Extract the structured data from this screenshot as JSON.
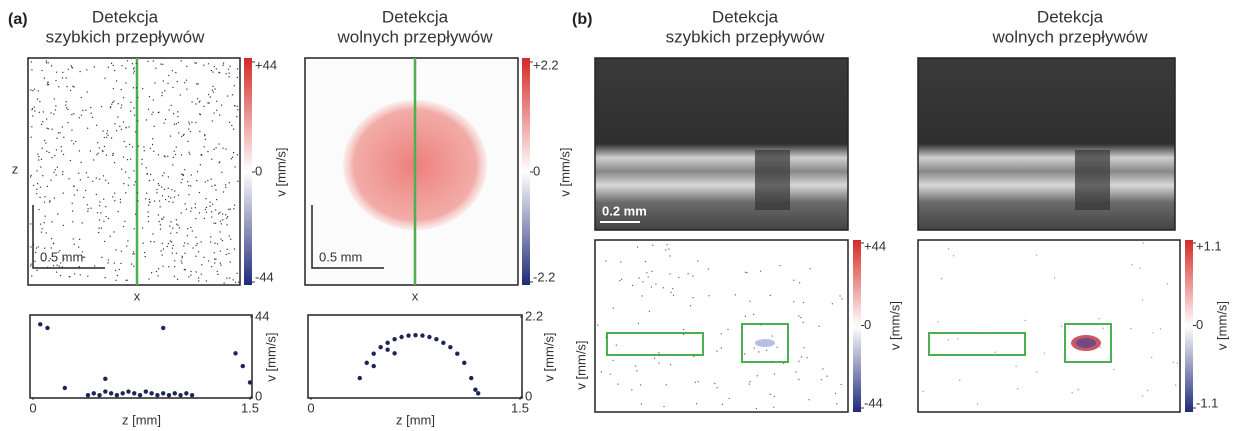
{
  "panel_a": {
    "label": "(a)",
    "fast": {
      "title": [
        "Detekcja",
        "szybkich przepływów"
      ],
      "z_label": "z",
      "x_label": "x",
      "scale_bar": "0.5 mm",
      "colorbar": {
        "label": "v [mm/s]",
        "ylim": [
          -44,
          44
        ],
        "ticks": [
          {
            "value": 44,
            "label": "+44"
          },
          0,
          -44
        ]
      },
      "profile": {
        "type": "scatter",
        "xlabel": "z [mm]",
        "ylabel": "v [mm/s]",
        "xlim": [
          0,
          1.5
        ],
        "ylim": [
          0,
          44
        ],
        "xticks": [
          0,
          1.5
        ],
        "yticks": [
          0,
          44
        ],
        "color": "#1c2458",
        "x": [
          0.05,
          0.1,
          0.22,
          0.5,
          0.9,
          1.4,
          1.45,
          1.5,
          0.38,
          0.42,
          0.46,
          0.5,
          0.54,
          0.58,
          0.62,
          0.66,
          0.7,
          0.74,
          0.78,
          0.82,
          0.86,
          0.9,
          0.94,
          0.98,
          1.02,
          1.06,
          1.1
        ],
        "y": [
          40,
          38,
          5,
          10,
          38,
          24,
          17,
          8,
          1,
          2,
          1,
          3,
          2,
          1,
          2,
          3,
          2,
          1,
          3,
          2,
          1,
          2,
          1,
          2,
          1,
          2,
          1
        ]
      }
    },
    "slow": {
      "title": [
        "Detekcja",
        "wolnych przepływów"
      ],
      "x_label": "x",
      "scale_bar": "0.5 mm",
      "colorbar": {
        "label": "v [mm/s]",
        "ylim": [
          -2.2,
          2.2
        ],
        "ticks": [
          {
            "value": 2.2,
            "label": "+2.2"
          },
          0,
          -2.2
        ]
      },
      "profile": {
        "type": "scatter",
        "xlabel": "z [mm]",
        "ylabel": "v [mm/s]",
        "xlim": [
          0,
          1.5
        ],
        "ylim": [
          0,
          2.2
        ],
        "xticks": [
          0,
          1.5
        ],
        "yticks": [
          0,
          2.2
        ],
        "color": "#1c2458",
        "x": [
          0.35,
          0.4,
          0.45,
          0.5,
          0.55,
          0.6,
          0.65,
          0.7,
          0.75,
          0.8,
          0.85,
          0.9,
          0.95,
          1.0,
          1.05,
          1.1,
          1.15,
          0.45,
          0.6,
          1.18,
          1.2,
          0.55
        ],
        "y": [
          0.52,
          0.94,
          1.19,
          1.37,
          1.49,
          1.59,
          1.65,
          1.69,
          1.7,
          1.69,
          1.65,
          1.59,
          1.49,
          1.37,
          1.19,
          0.94,
          0.52,
          0.85,
          1.2,
          0.2,
          0.1,
          1.3
        ]
      }
    }
  },
  "panel_b": {
    "label": "(b)",
    "y_label": "v [mm/s]",
    "fast": {
      "title": [
        "Detekcja",
        "szybkich przepływów"
      ],
      "scale_bar": "0.2 mm",
      "colorbar": {
        "label": "v [mm/s]",
        "ylim": [
          -44,
          44
        ],
        "ticks": [
          {
            "value": 44,
            "label": "+44"
          },
          0,
          -44
        ]
      }
    },
    "slow": {
      "title": [
        "Detekcja",
        "wolnych przepływów"
      ],
      "colorbar": {
        "label": "v [mm/s]",
        "ylim": [
          -1.1,
          1.1
        ],
        "ticks": [
          {
            "value": 1.1,
            "label": "+1.1"
          },
          0,
          -1.1
        ]
      }
    }
  }
}
